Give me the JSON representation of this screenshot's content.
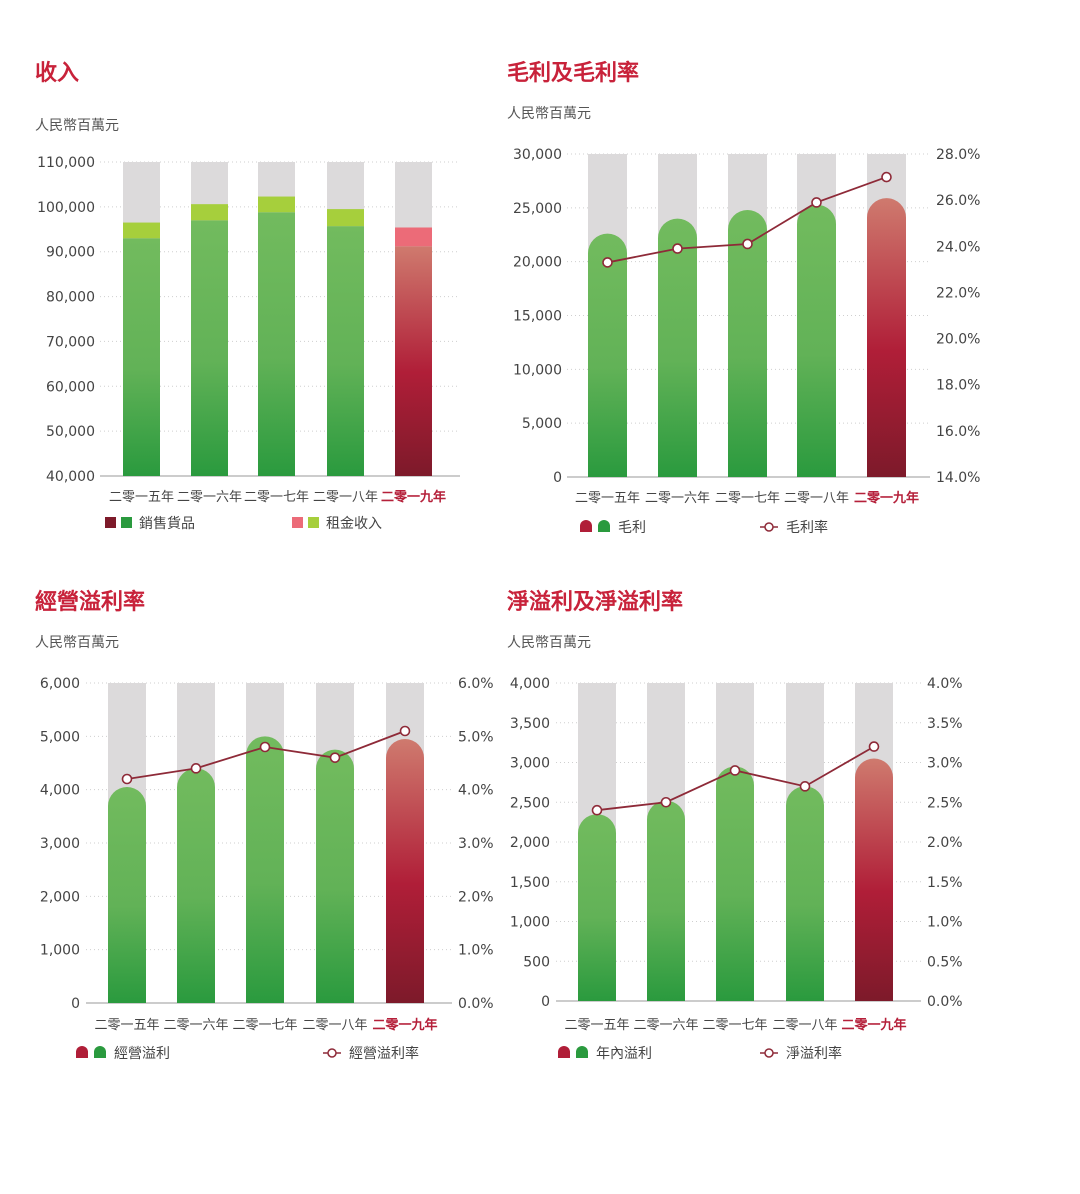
{
  "colors": {
    "title": "#c8223a",
    "green_top": "#72bb5e",
    "green_bottom": "#2a9a3e",
    "red_top": "#cf7a6e",
    "red_mid": "#b01e38",
    "red_bottom": "#7d1a2a",
    "background_bar": "#dcdadb",
    "light_green": "#a6cf3c",
    "pink": "#ec6b78",
    "line": "#8e2a38"
  },
  "chart_data": [
    {
      "type": "bar",
      "title": "收入",
      "unit_label": "人民幣百萬元",
      "categories": [
        "二零一五年",
        "二零一六年",
        "二零一七年",
        "二零一八年",
        "二零一九年"
      ],
      "highlight_category": "二零一九年",
      "series": [
        {
          "name": "銷售貨品",
          "values": [
            93000,
            97000,
            98800,
            95700,
            91200
          ]
        },
        {
          "name": "租金收入",
          "values": [
            3500,
            3600,
            3500,
            3800,
            4200
          ]
        }
      ],
      "ylim": [
        40000,
        110000
      ],
      "yticks": [
        "40,000",
        "50,000",
        "60,000",
        "70,000",
        "80,000",
        "90,000",
        "100,000",
        "110,000"
      ],
      "legend": [
        {
          "label": "銷售貨品",
          "markers": [
            "dark-red-square",
            "green-square"
          ]
        },
        {
          "label": "租金收入",
          "markers": [
            "pink-square",
            "light-green-square"
          ]
        }
      ]
    },
    {
      "type": "bar",
      "title": "毛利及毛利率",
      "unit_label": "人民幣百萬元",
      "categories": [
        "二零一五年",
        "二零一六年",
        "二零一七年",
        "二零一八年",
        "二零一九年"
      ],
      "highlight_category": "二零一九年",
      "series": [
        {
          "name": "毛利",
          "values": [
            22600,
            24000,
            24800,
            25300,
            25900
          ]
        },
        {
          "name": "毛利率",
          "axis": "right",
          "values": [
            23.3,
            23.9,
            24.1,
            25.9,
            27.0
          ]
        }
      ],
      "ylim": [
        0,
        30000
      ],
      "yticks": [
        "0",
        "5,000",
        "10,000",
        "15,000",
        "20,000",
        "25,000",
        "30,000"
      ],
      "y2lim": [
        14,
        28
      ],
      "y2ticks": [
        "14.0%",
        "16.0%",
        "18.0%",
        "20.0%",
        "22.0%",
        "24.0%",
        "26.0%",
        "28.0%"
      ],
      "legend": [
        {
          "label": "毛利",
          "markers": [
            "dark-red-dome",
            "green-dome"
          ]
        },
        {
          "label": "毛利率",
          "markers": [
            "line-circle"
          ]
        }
      ]
    },
    {
      "type": "bar",
      "title": "經營溢利率",
      "unit_label": "人民幣百萬元",
      "categories": [
        "二零一五年",
        "二零一六年",
        "二零一七年",
        "二零一八年",
        "二零一九年"
      ],
      "highlight_category": "二零一九年",
      "series": [
        {
          "name": "經營溢利",
          "values": [
            4050,
            4400,
            5000,
            4750,
            4950
          ]
        },
        {
          "name": "經營溢利率",
          "axis": "right",
          "values": [
            4.2,
            4.4,
            4.8,
            4.6,
            5.1
          ]
        }
      ],
      "ylim": [
        0,
        6000
      ],
      "yticks": [
        "0",
        "1,000",
        "2,000",
        "3,000",
        "4,000",
        "5,000",
        "6,000"
      ],
      "y2lim": [
        0,
        6
      ],
      "y2ticks": [
        "0.0%",
        "1.0%",
        "2.0%",
        "3.0%",
        "4.0%",
        "5.0%",
        "6.0%"
      ],
      "legend": [
        {
          "label": "經營溢利",
          "markers": [
            "dark-red-dome",
            "green-dome"
          ]
        },
        {
          "label": "經營溢利率",
          "markers": [
            "line-circle"
          ]
        }
      ]
    },
    {
      "type": "bar",
      "title": "淨溢利及淨溢利率",
      "unit_label": "人民幣百萬元",
      "categories": [
        "二零一五年",
        "二零一六年",
        "二零一七年",
        "二零一八年",
        "二零一九年"
      ],
      "highlight_category": "二零一九年",
      "series": [
        {
          "name": "年內溢利",
          "values": [
            2350,
            2520,
            2950,
            2700,
            3050
          ]
        },
        {
          "name": "淨溢利率",
          "axis": "right",
          "values": [
            2.4,
            2.5,
            2.9,
            2.7,
            3.2
          ]
        }
      ],
      "ylim": [
        0,
        4000
      ],
      "yticks": [
        "0",
        "500",
        "1,000",
        "1,500",
        "2,000",
        "2,500",
        "3,000",
        "3,500",
        "4,000"
      ],
      "y2lim": [
        0,
        4
      ],
      "y2ticks": [
        "0.0%",
        "0.5%",
        "1.0%",
        "1.5%",
        "2.0%",
        "2.5%",
        "3.0%",
        "3.5%",
        "4.0%"
      ],
      "legend": [
        {
          "label": "年內溢利",
          "markers": [
            "dark-red-dome",
            "green-dome"
          ]
        },
        {
          "label": "淨溢利率",
          "markers": [
            "line-circle"
          ]
        }
      ]
    }
  ]
}
